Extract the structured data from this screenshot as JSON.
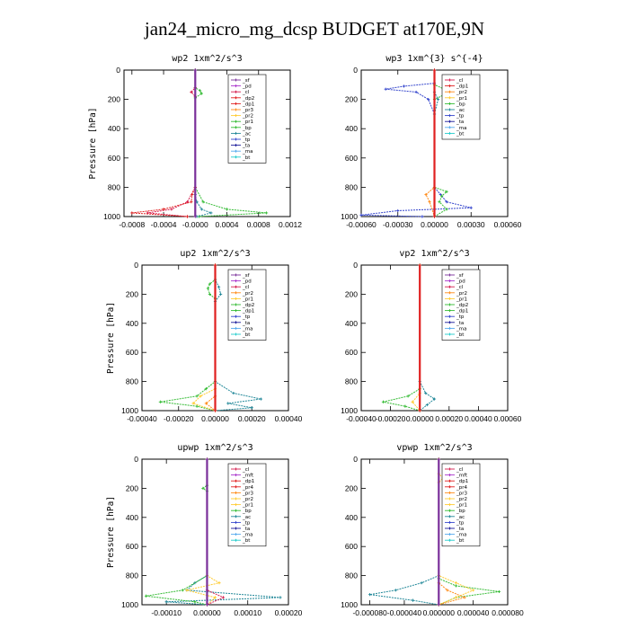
{
  "figure": {
    "title": "jan24_micro_mg_dcsp  BUDGET at170E,9N"
  },
  "colors": {
    "purple": "#7a2f9a",
    "violet": "#aa33cc",
    "crimson": "#d61e4f",
    "red": "#e02020",
    "orange": "#ff8c1a",
    "yellow": "#ffcc33",
    "green": "#33bb33",
    "teal": "#228899",
    "blue": "#3344cc",
    "navy": "#1a1a99",
    "ltblue": "#55aaee",
    "cyan": "#22cccc"
  },
  "chart_data": [
    {
      "type": "line",
      "title": "wp2   1xm^2/s^3",
      "ylabel": "Pressure [hPa]",
      "xlim": [
        -0.0009,
        0.0012
      ],
      "ylim": [
        1000,
        0
      ],
      "xticks": [
        -0.0008,
        -0.0004,
        0.0,
        0.0004,
        0.0008,
        0.0012
      ],
      "xticklabels": [
        "-0.0008",
        "-0.0004",
        "-0.0000",
        "0.0004",
        "0.0008",
        "0.0012"
      ],
      "yticks": [
        0,
        200,
        400,
        600,
        800,
        1000
      ],
      "legend": [
        "_sf",
        "_pd",
        "_cl",
        "_dp2",
        "_dp1",
        "_pr3",
        "_pr2",
        "_pr1",
        "_bp",
        "_ac",
        "_tp",
        "_ta",
        "_ma",
        "_bt"
      ],
      "legend_colors": [
        "purple",
        "violet",
        "crimson",
        "red",
        "red",
        "orange",
        "yellow",
        "green",
        "green",
        "teal",
        "blue",
        "navy",
        "ltblue",
        "cyan"
      ],
      "series": [
        {
          "color": "green",
          "p": [
            0,
            120,
            140,
            160,
            190,
            800,
            900,
            950,
            975,
            1000
          ],
          "v": [
            0,
            0,
            6e-05,
            8e-05,
            0,
            0,
            0.0001,
            0.0004,
            0.0009,
            5e-05
          ]
        },
        {
          "color": "crimson",
          "p": [
            0,
            120,
            150,
            180,
            800,
            900,
            950,
            975,
            1000
          ],
          "v": [
            0,
            0,
            -5e-05,
            0,
            0,
            -0.0001,
            -0.0003,
            -0.0006,
            -0.0001
          ]
        },
        {
          "color": "red",
          "p": [
            0,
            800,
            850,
            900,
            950,
            975,
            1000
          ],
          "v": [
            0,
            0,
            -4e-05,
            -5e-05,
            -0.0004,
            -0.0008,
            -0.0001
          ]
        },
        {
          "color": "teal",
          "p": [
            0,
            850,
            900,
            950,
            975,
            1000
          ],
          "v": [
            0,
            0,
            2e-05,
            8e-05,
            0.0002,
            2e-05
          ]
        },
        {
          "color": "purple",
          "p": [
            0,
            1000
          ],
          "v": [
            0,
            0
          ]
        }
      ]
    },
    {
      "type": "line",
      "title": "wp3   1xm^{3} s^{-4}",
      "ylabel": "",
      "xlim": [
        -0.0006,
        0.0006
      ],
      "ylim": [
        1000,
        0
      ],
      "xticks": [
        -0.0006,
        -0.0003,
        0.0,
        0.0003,
        0.0006
      ],
      "xticklabels": [
        "-0.00060",
        "-0.00030",
        "0.00000",
        "0.00030",
        "0.00060"
      ],
      "yticks": [
        0,
        200,
        400,
        600,
        800,
        1000
      ],
      "legend": [
        "_cl",
        "_dp1",
        "_pr2",
        "_pr1",
        "_bp",
        "_ac",
        "_tp",
        "_ta",
        "_ma",
        "_bt"
      ],
      "legend_colors": [
        "crimson",
        "red",
        "orange",
        "yellow",
        "green",
        "teal",
        "blue",
        "navy",
        "ltblue",
        "cyan"
      ],
      "series": [
        {
          "color": "blue",
          "p": [
            0,
            90,
            110,
            130,
            150,
            200,
            300,
            800,
            850,
            900,
            940,
            960,
            990,
            1000
          ],
          "v": [
            0,
            0,
            -0.00025,
            -0.0004,
            -0.00015,
            -5e-05,
            0,
            0,
            5e-05,
            0.0001,
            0.0003,
            -0.0003,
            -0.0006,
            -0.0001
          ]
        },
        {
          "color": "green",
          "p": [
            0,
            100,
            130,
            160,
            200,
            800,
            830,
            860,
            900,
            950,
            1000
          ],
          "v": [
            0,
            0,
            8e-05,
            0.0001,
            0,
            0,
            0.0001,
            6e-05,
            4e-05,
            0.0001,
            0
          ]
        },
        {
          "color": "orange",
          "p": [
            0,
            800,
            850,
            900,
            1000
          ],
          "v": [
            0,
            0,
            -7e-05,
            -4e-05,
            0
          ]
        },
        {
          "color": "teal",
          "p": [
            0,
            150,
            200,
            300,
            1000
          ],
          "v": [
            0,
            0,
            3e-05,
            0,
            0
          ]
        },
        {
          "color": "red",
          "p": [
            0,
            1000
          ],
          "v": [
            0,
            0
          ]
        }
      ]
    },
    {
      "type": "line",
      "title": "up2   1xm^2/s^3",
      "ylabel": "Pressure [hPa]",
      "xlim": [
        -0.0004,
        0.0004
      ],
      "ylim": [
        1000,
        0
      ],
      "xticks": [
        -0.0004,
        -0.0002,
        0.0,
        0.0002,
        0.0004
      ],
      "xticklabels": [
        "-0.00040",
        "-0.00020",
        "0.00000",
        "0.00020",
        "0.00040"
      ],
      "yticks": [
        0,
        200,
        400,
        600,
        800,
        1000
      ],
      "legend": [
        "_sf",
        "_pd",
        "_cl",
        "_pr2",
        "_pr1",
        "_dp2",
        "_dp1",
        "_tp",
        "_ta",
        "_ma",
        "_bt"
      ],
      "legend_colors": [
        "purple",
        "violet",
        "crimson",
        "orange",
        "yellow",
        "green",
        "green",
        "blue",
        "navy",
        "ltblue",
        "cyan"
      ],
      "series": [
        {
          "color": "green",
          "p": [
            0,
            100,
            130,
            160,
            200,
            230,
            800,
            850,
            900,
            940,
            970,
            1000
          ],
          "v": [
            0,
            0,
            -3e-05,
            -4e-05,
            -3e-05,
            0,
            0,
            -5e-05,
            -0.0001,
            -0.0003,
            -0.0001,
            0
          ]
        },
        {
          "color": "teal",
          "p": [
            0,
            100,
            150,
            200,
            250,
            800,
            880,
            920,
            950,
            980,
            1000
          ],
          "v": [
            0,
            0,
            2e-05,
            3e-05,
            0,
            0,
            0.0001,
            0.00025,
            7e-05,
            0.0002,
            0
          ]
        },
        {
          "color": "yellow",
          "p": [
            0,
            850,
            900,
            950,
            1000
          ],
          "v": [
            0,
            0,
            -8e-05,
            -0.00012,
            0
          ]
        },
        {
          "color": "orange",
          "p": [
            0,
            900,
            950,
            1000
          ],
          "v": [
            0,
            0,
            -5e-05,
            0
          ]
        },
        {
          "color": "red",
          "p": [
            0,
            1000
          ],
          "v": [
            0,
            0
          ]
        }
      ]
    },
    {
      "type": "line",
      "title": "vp2   1xm^2/s^3",
      "ylabel": "",
      "xlim": [
        -0.0004,
        0.0006
      ],
      "ylim": [
        1000,
        0
      ],
      "xticks": [
        -0.0004,
        -0.0002,
        0.0,
        0.0002,
        0.0004,
        0.0006
      ],
      "xticklabels": [
        "-0.00040",
        "-0.00020",
        "0.00000",
        "0.00020",
        "0.00040",
        "0.00060"
      ],
      "yticks": [
        0,
        200,
        400,
        600,
        800,
        1000
      ],
      "legend": [
        "_sf",
        "_pd",
        "_cl",
        "_pr2",
        "_pr1",
        "_dp2",
        "_dp1",
        "_tp",
        "_ta",
        "_ma",
        "_bt"
      ],
      "legend_colors": [
        "purple",
        "violet",
        "crimson",
        "orange",
        "yellow",
        "green",
        "green",
        "blue",
        "navy",
        "ltblue",
        "cyan"
      ],
      "series": [
        {
          "color": "green",
          "p": [
            0,
            850,
            900,
            940,
            970,
            1000
          ],
          "v": [
            0,
            0,
            -8e-05,
            -0.00025,
            -0.0001,
            0
          ]
        },
        {
          "color": "teal",
          "p": [
            0,
            800,
            880,
            920,
            960,
            1000
          ],
          "v": [
            0,
            0,
            4e-05,
            0.0001,
            5e-05,
            0
          ]
        },
        {
          "color": "yellow",
          "p": [
            0,
            880,
            940,
            1000
          ],
          "v": [
            0,
            0,
            -5e-05,
            0
          ]
        },
        {
          "color": "red",
          "p": [
            0,
            1000
          ],
          "v": [
            0,
            0
          ]
        }
      ]
    },
    {
      "type": "line",
      "title": "upwp   1xm^2/s^3",
      "ylabel": "Pressure [hPa]",
      "xlim": [
        -0.00016,
        0.0002
      ],
      "ylim": [
        1000,
        0
      ],
      "xticks": [
        -0.0001,
        0.0,
        0.0001,
        0.0002
      ],
      "xticklabels": [
        "-0.00010",
        "0.00000",
        "0.00010",
        "0.00020"
      ],
      "yticks": [
        0,
        200,
        400,
        600,
        800,
        1000
      ],
      "legend": [
        "_cl",
        "_mft",
        "_dp1",
        "_pr4",
        "_pr3",
        "_pr2",
        "_pr1",
        "_bp",
        "_ac",
        "_tp",
        "_ta",
        "_ma",
        "_bt"
      ],
      "legend_colors": [
        "crimson",
        "violet",
        "red",
        "red",
        "orange",
        "yellow",
        "yellow",
        "green",
        "teal",
        "blue",
        "navy",
        "ltblue",
        "cyan"
      ],
      "series": [
        {
          "color": "teal",
          "p": [
            0,
            800,
            850,
            900,
            950,
            980,
            1000
          ],
          "v": [
            0,
            0,
            -3e-05,
            -5e-05,
            0.00018,
            -0.0001,
            0
          ]
        },
        {
          "color": "green",
          "p": [
            0,
            180,
            200,
            220,
            800,
            900,
            940,
            980,
            1000
          ],
          "v": [
            0,
            0,
            -1e-05,
            0,
            0,
            -6e-05,
            -0.00015,
            -3e-05,
            0
          ]
        },
        {
          "color": "yellow",
          "p": [
            0,
            800,
            850,
            900,
            950,
            1000
          ],
          "v": [
            0,
            0,
            3e-05,
            -5e-05,
            2e-05,
            0
          ]
        },
        {
          "color": "crimson",
          "p": [
            0,
            900,
            950,
            1000
          ],
          "v": [
            0,
            0,
            4e-05,
            0
          ]
        },
        {
          "color": "purple",
          "p": [
            0,
            1000
          ],
          "v": [
            0,
            0
          ]
        }
      ]
    },
    {
      "type": "line",
      "title": "vpwp   1xm^2/s^3",
      "ylabel": "",
      "xlim": [
        -9e-05,
        8e-05
      ],
      "ylim": [
        1000,
        0
      ],
      "xticks": [
        -8e-05,
        -4e-05,
        0.0,
        4e-05,
        8e-05
      ],
      "xticklabels": [
        "-0.000080",
        "-0.000040",
        "0.000000",
        "0.000040",
        "0.000080"
      ],
      "yticks": [
        0,
        200,
        400,
        600,
        800,
        1000
      ],
      "legend": [
        "_cl",
        "_mft",
        "_dp1",
        "_pr4",
        "_pr3",
        "_pr2",
        "_pr1",
        "_bp",
        "_ac",
        "_tp",
        "_ta",
        "_ma",
        "_bt"
      ],
      "legend_colors": [
        "crimson",
        "violet",
        "red",
        "red",
        "orange",
        "yellow",
        "yellow",
        "green",
        "teal",
        "blue",
        "navy",
        "ltblue",
        "cyan"
      ],
      "series": [
        {
          "color": "teal",
          "p": [
            0,
            800,
            850,
            900,
            930,
            970,
            1000
          ],
          "v": [
            0,
            0,
            -2e-05,
            -5e-05,
            -8e-05,
            -3e-05,
            0
          ]
        },
        {
          "color": "green",
          "p": [
            0,
            820,
            870,
            910,
            950,
            1000
          ],
          "v": [
            0,
            0,
            2e-05,
            7e-05,
            2e-05,
            0
          ]
        },
        {
          "color": "yellow",
          "p": [
            0,
            100,
            130,
            160,
            800,
            850,
            900,
            950,
            1000
          ],
          "v": [
            0,
            0,
            5e-06,
            0,
            0,
            2e-05,
            4e-05,
            2e-05,
            0
          ]
        },
        {
          "color": "orange",
          "p": [
            0,
            850,
            900,
            950,
            1000
          ],
          "v": [
            0,
            0,
            1e-05,
            3e-05,
            0
          ]
        },
        {
          "color": "purple",
          "p": [
            0,
            1000
          ],
          "v": [
            0,
            0
          ]
        }
      ]
    }
  ]
}
